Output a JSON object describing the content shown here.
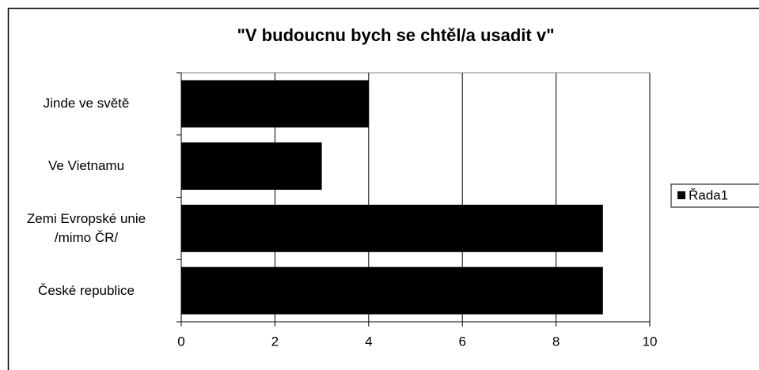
{
  "chart_data": {
    "type": "bar",
    "orientation": "horizontal",
    "title": "\"V budoucnu bych se chtěl/a usadit v\"",
    "categories": [
      "Jinde ve světě",
      "Ve Vietnamu",
      "Zemi Evropské unie /mimo ČR/",
      "České republice"
    ],
    "series": [
      {
        "name": "Řada1",
        "color": "#000000",
        "values": [
          4,
          3,
          9,
          9
        ]
      }
    ],
    "xlim": [
      0,
      10
    ],
    "xticks": [
      0,
      2,
      4,
      6,
      8,
      10
    ],
    "grid": true,
    "legend": "right"
  }
}
